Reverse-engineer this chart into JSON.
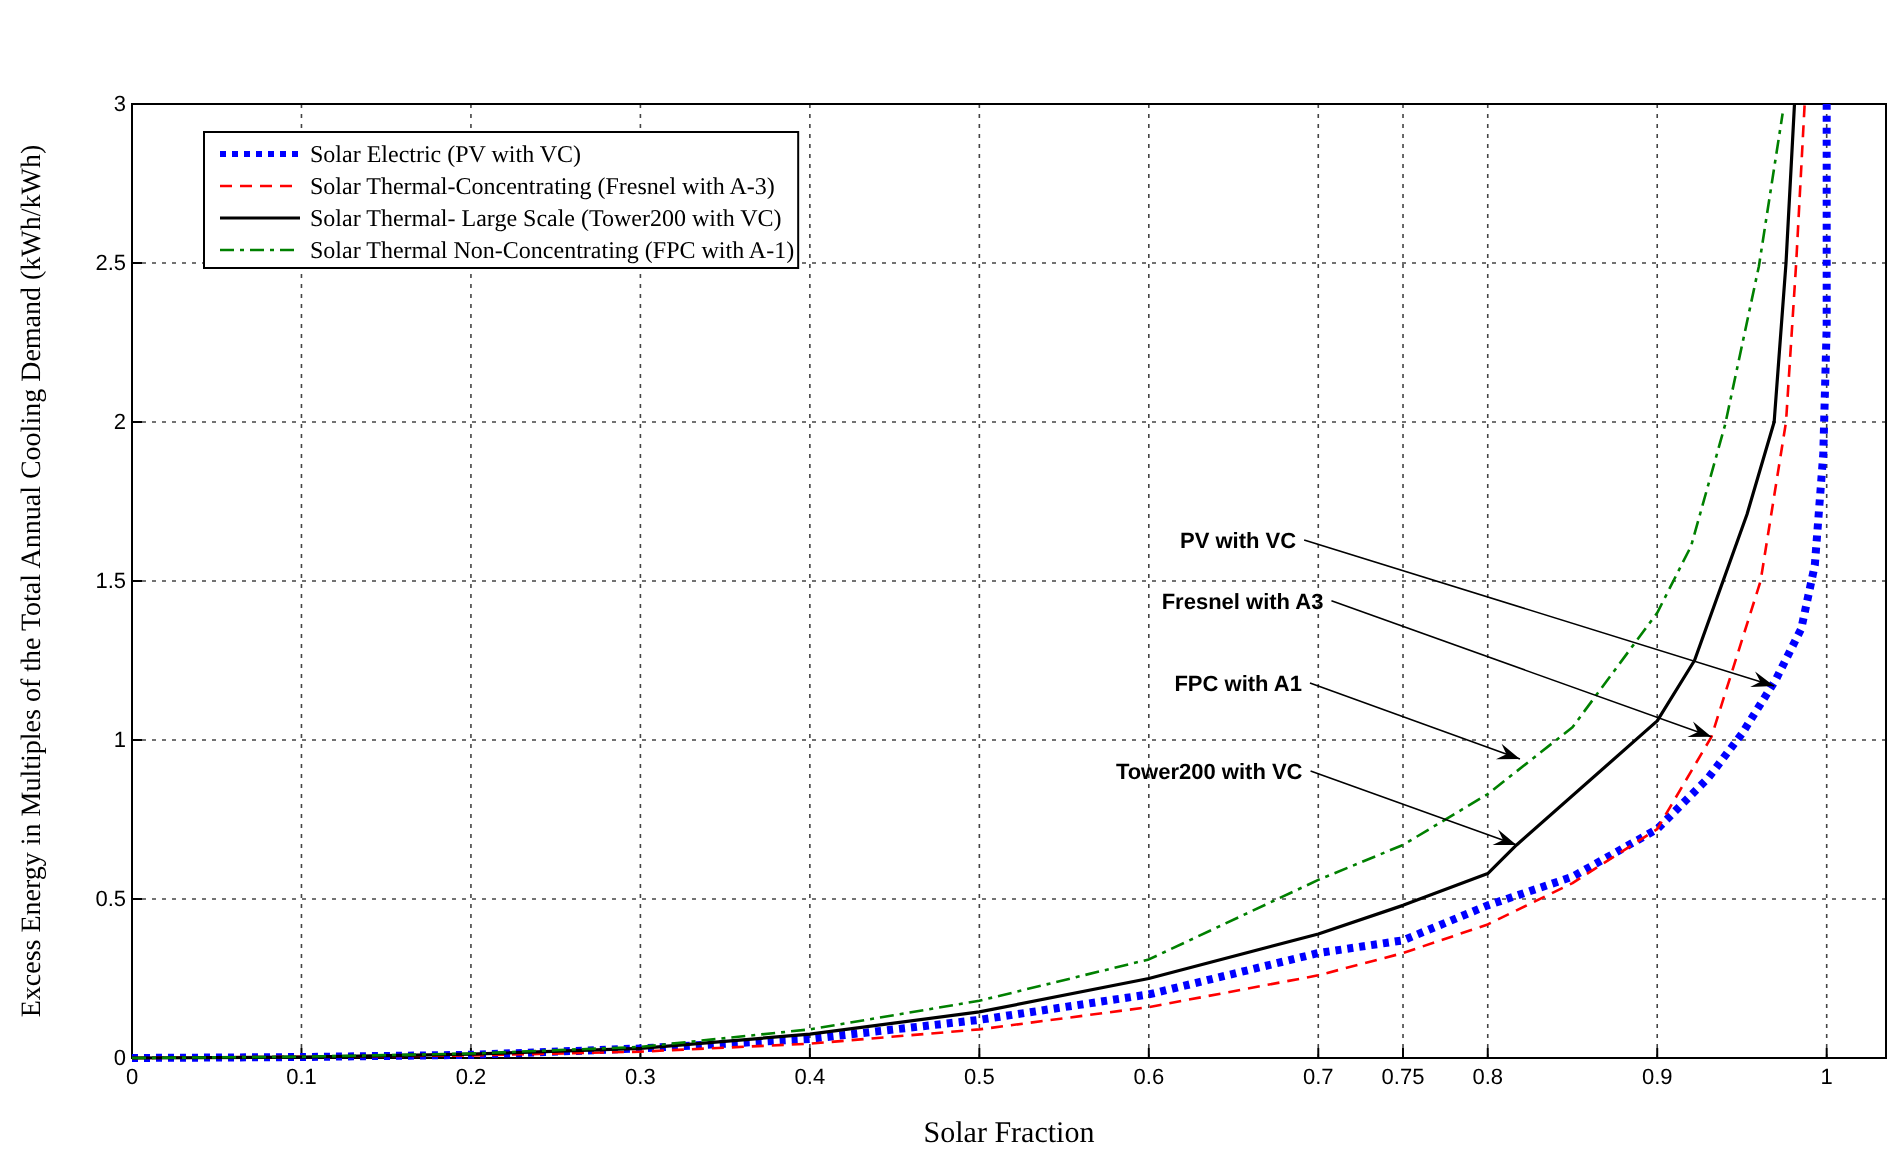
{
  "chart_data": {
    "type": "line",
    "xlabel": "Solar Fraction",
    "ylabel": "Excess Energy in Multiples of the Total Annual Cooling Demand (kWh/kWh)",
    "xlim": [
      0,
      1.035
    ],
    "ylim": [
      0,
      3
    ],
    "xticks": [
      0,
      0.1,
      0.2,
      0.3,
      0.4,
      0.5,
      0.6,
      0.7,
      0.75,
      0.8,
      0.9,
      1
    ],
    "yticks": [
      0,
      0.5,
      1,
      1.5,
      2,
      2.5,
      3
    ],
    "grid": true,
    "legend": "top left",
    "series": [
      {
        "name": "Solar Electric (PV with VC)",
        "color": "#0000ff",
        "line_style": "dotted",
        "x": [
          0,
          0.1,
          0.2,
          0.3,
          0.4,
          0.5,
          0.6,
          0.7,
          0.75,
          0.8,
          0.85,
          0.9,
          0.93,
          0.95,
          0.97,
          0.985,
          0.993,
          0.998,
          1,
          1
        ],
        "values": [
          0,
          0.003,
          0.01,
          0.03,
          0.06,
          0.12,
          0.2,
          0.33,
          0.37,
          0.48,
          0.57,
          0.72,
          0.88,
          1.02,
          1.19,
          1.35,
          1.55,
          1.9,
          2.3,
          3
        ]
      },
      {
        "name": "Solar Thermal-Concentrating (Fresnel with A-3)",
        "color": "#ff0000",
        "line_style": "dashed",
        "x": [
          0,
          0.1,
          0.2,
          0.3,
          0.4,
          0.5,
          0.6,
          0.7,
          0.75,
          0.8,
          0.85,
          0.9,
          0.932,
          0.961,
          0.976,
          0.982,
          0.987
        ],
        "values": [
          0,
          null,
          0.008,
          0.02,
          0.045,
          0.09,
          0.16,
          0.26,
          0.33,
          0.42,
          0.55,
          0.72,
          1.01,
          1.5,
          2,
          2.5,
          3
        ]
      },
      {
        "name": "Solar Thermal- Large Scale (Tower200 with VC)",
        "color": "#000000",
        "line_style": "solid",
        "x": [
          0,
          0.1,
          0.2,
          0.3,
          0.4,
          0.5,
          0.6,
          0.7,
          0.75,
          0.8,
          0.817,
          0.9,
          0.922,
          0.953,
          0.969,
          0.976,
          0.981
        ],
        "values": [
          0,
          0.003,
          0.012,
          0.03,
          0.075,
          0.145,
          0.25,
          0.39,
          0.48,
          0.58,
          0.67,
          1.06,
          1.25,
          1.71,
          2,
          2.5,
          3
        ]
      },
      {
        "name": "Solar Thermal Non-Concentrating (FPC with A-1)",
        "color": "#008000",
        "line_style": "dashdot",
        "x": [
          0,
          0.1,
          0.2,
          0.3,
          0.4,
          0.5,
          0.6,
          0.7,
          0.75,
          0.8,
          0.85,
          0.9,
          0.92,
          0.94,
          0.96,
          0.974
        ],
        "values": [
          0,
          0.004,
          0.014,
          0.035,
          0.09,
          0.18,
          0.31,
          0.56,
          0.67,
          0.83,
          1.04,
          1.4,
          1.61,
          1.99,
          2.49,
          2.97
        ]
      }
    ],
    "annotations": [
      {
        "text": "PV with VC",
        "x": 0.969,
        "y": 1.17
      },
      {
        "text": "Fresnel with A3",
        "x": 0.932,
        "y": 1.01
      },
      {
        "text": "FPC with A1",
        "x": 0.819,
        "y": 0.94
      },
      {
        "text": "Tower200 with VC",
        "x": 0.817,
        "y": 0.67
      }
    ]
  }
}
